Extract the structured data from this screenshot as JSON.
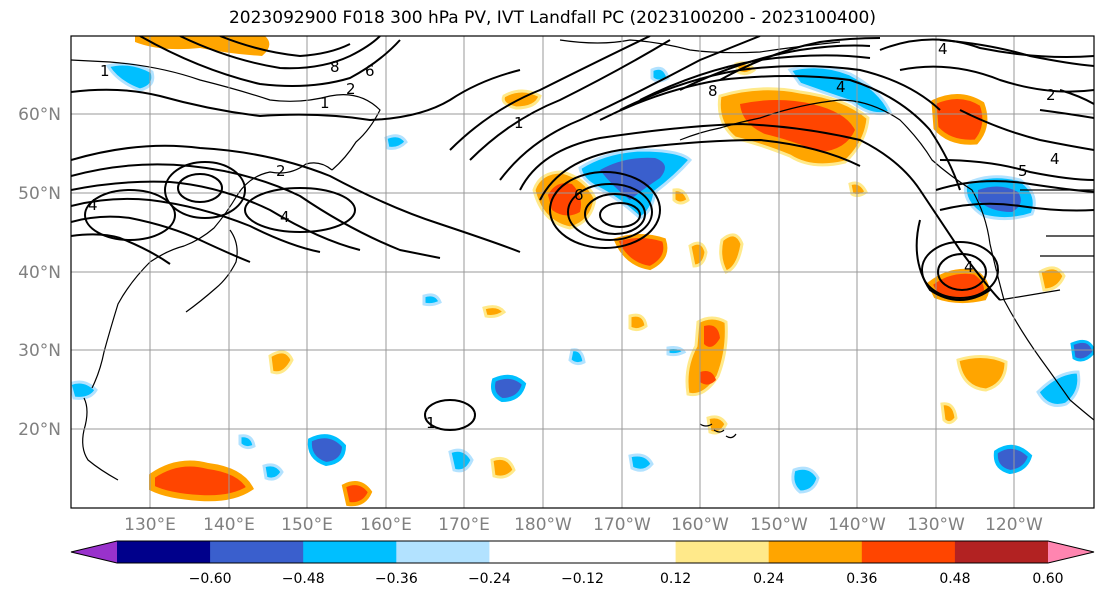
{
  "title": "2023092900 F018 300 hPa PV, IVT Landfall PC (2023100200 - 2023100400)",
  "lat_labels": [
    "60°N",
    "50°N",
    "40°N",
    "30°N",
    "20°N"
  ],
  "lon_labels": [
    "130°E",
    "140°E",
    "150°E",
    "160°E",
    "170°E",
    "180°W",
    "170°W",
    "160°W",
    "150°W",
    "140°W",
    "130°W",
    "120°W"
  ],
  "colorbar": {
    "colors": [
      "#9932cc",
      "#00008b",
      "#3a5fcd",
      "#00bfff",
      "#b2e2ff",
      "#ffffff",
      "#ffffff",
      "#ffe98a",
      "#ffa500",
      "#ff4500",
      "#b22222",
      "#ff85b0"
    ],
    "labels": [
      "-0.60",
      "-0.48",
      "-0.36",
      "-0.24",
      "-0.12",
      "0.12",
      "0.24",
      "0.36",
      "0.48",
      "0.60"
    ]
  },
  "contour_labels": [
    "1",
    "8",
    "6",
    "2",
    "1",
    "8",
    "4",
    "2",
    "4",
    "5",
    "4",
    "1",
    "6",
    "4",
    "2",
    "4",
    "4",
    "1"
  ],
  "colors": {
    "pos_light": "#ffe98a",
    "pos_mid": "#ffa500",
    "pos_strong": "#ff4500",
    "neg_light": "#b2e2ff",
    "neg_mid": "#00bfff",
    "neg_strong": "#3a5fcd",
    "grid": "#999999",
    "contour": "#000000"
  }
}
